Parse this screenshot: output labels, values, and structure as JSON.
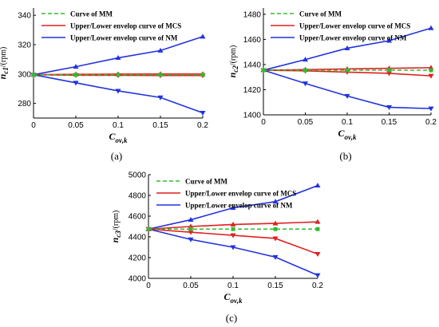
{
  "colors": {
    "MM": "#33bb33",
    "MCS": "#e02020",
    "NM": "#2233dd"
  },
  "chart_data": [
    {
      "type": "line",
      "panel_label": "(a)",
      "ylabel_main": "n",
      "ylabel_sub": "c1",
      "ylabel_unit": "/(rpm)",
      "xlabel_main": "C",
      "xlabel_sub": "ov,k",
      "xlim": [
        0,
        0.2
      ],
      "ylim": [
        270,
        345
      ],
      "x_ticks": [
        "0",
        "0.05",
        "0.1",
        "0.15",
        "0.2"
      ],
      "y_ticks": [
        "280",
        "300",
        "320",
        "340"
      ],
      "legend": [
        "Curve of MM",
        "Upper/Lower envelop curve of MCS",
        "Upper/Lower envelop curve of NM"
      ],
      "x": [
        0,
        0.05,
        0.1,
        0.15,
        0.2
      ],
      "series": [
        {
          "group": "MM",
          "marker": "square",
          "dashed": true,
          "values": [
            299.5,
            299.5,
            299.5,
            299.5,
            299.5
          ]
        },
        {
          "group": "MCS",
          "marker": "tri-up",
          "values": [
            299.5,
            299.8,
            299.9,
            300.0,
            300.0
          ]
        },
        {
          "group": "MCS",
          "marker": "tri-down",
          "values": [
            299.5,
            299.2,
            299.1,
            299.0,
            299.0
          ]
        },
        {
          "group": "NM",
          "marker": "tri-up",
          "values": [
            299.5,
            305,
            311,
            316,
            325.5
          ]
        },
        {
          "group": "NM",
          "marker": "tri-down",
          "values": [
            299.5,
            294,
            288.5,
            284,
            273.5
          ]
        }
      ]
    },
    {
      "type": "line",
      "panel_label": "(b)",
      "ylabel_main": "n",
      "ylabel_sub": "c2",
      "ylabel_unit": "/(rpm)",
      "xlabel_main": "C",
      "xlabel_sub": "ov,k",
      "xlim": [
        0,
        0.2
      ],
      "ylim": [
        1400,
        1485
      ],
      "x_ticks": [
        "0",
        "0.05",
        "0.1",
        "0.15",
        "0.2"
      ],
      "y_ticks": [
        "1400",
        "1420",
        "1440",
        "1460",
        "1480"
      ],
      "legend": [
        "Curve of MM",
        "Upper/Lower envelop curve of MCS",
        "Upper/Lower envelop curve of NM"
      ],
      "x": [
        0,
        0.05,
        0.1,
        0.15,
        0.2
      ],
      "series": [
        {
          "group": "MM",
          "marker": "square",
          "dashed": true,
          "values": [
            1435.5,
            1435.5,
            1435.5,
            1435.5,
            1435.5
          ]
        },
        {
          "group": "MCS",
          "marker": "tri-up",
          "values": [
            1435.5,
            1436,
            1436.5,
            1437,
            1437.5
          ]
        },
        {
          "group": "MCS",
          "marker": "tri-down",
          "values": [
            1435.5,
            1435,
            1434,
            1433,
            1431
          ]
        },
        {
          "group": "NM",
          "marker": "tri-up",
          "values": [
            1435.5,
            1444,
            1453,
            1459,
            1469
          ]
        },
        {
          "group": "NM",
          "marker": "tri-down",
          "values": [
            1435.5,
            1425,
            1415,
            1406,
            1405
          ]
        }
      ]
    },
    {
      "type": "line",
      "panel_label": "(c)",
      "ylabel_main": "n",
      "ylabel_sub": "c3",
      "ylabel_unit": "/(rpm)",
      "xlabel_main": "C",
      "xlabel_sub": "ov,k",
      "xlim": [
        0,
        0.2
      ],
      "ylim": [
        4000,
        5000
      ],
      "x_ticks": [
        "0",
        "0.05",
        "0.1",
        "0.15",
        "0.2"
      ],
      "y_ticks": [
        "4000",
        "4200",
        "4400",
        "4600",
        "4800",
        "5000"
      ],
      "legend": [
        "Curve of MM",
        "Upper/Lower envelop curve of MCS",
        "Upper/Lower envelop curve of NM"
      ],
      "x": [
        0,
        0.05,
        0.1,
        0.15,
        0.2
      ],
      "series": [
        {
          "group": "MM",
          "marker": "square",
          "dashed": true,
          "values": [
            4475,
            4475,
            4475,
            4475,
            4475
          ]
        },
        {
          "group": "MCS",
          "marker": "tri-up",
          "values": [
            4475,
            4500,
            4520,
            4530,
            4545
          ]
        },
        {
          "group": "MCS",
          "marker": "tri-down",
          "values": [
            4475,
            4445,
            4415,
            4385,
            4235
          ]
        },
        {
          "group": "NM",
          "marker": "tri-up",
          "values": [
            4475,
            4565,
            4680,
            4740,
            4895
          ]
        },
        {
          "group": "NM",
          "marker": "tri-down",
          "values": [
            4475,
            4375,
            4300,
            4205,
            4030
          ]
        }
      ]
    }
  ]
}
